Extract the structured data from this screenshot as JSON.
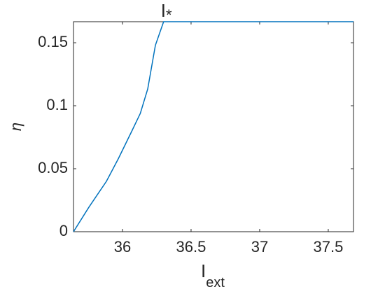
{
  "chart_data": {
    "type": "line",
    "x": [
      35.643,
      35.755,
      35.883,
      35.97,
      36.066,
      36.13,
      36.184,
      36.24,
      36.3,
      37.684
    ],
    "series": [
      {
        "color": "#0072bd",
        "values": [
          0,
          0.0194,
          0.04,
          0.058,
          0.0794,
          0.0939,
          0.1133,
          0.148,
          0.1667,
          0.1667
        ]
      }
    ],
    "xlim": [
      35.643,
      37.684
    ],
    "ylim": [
      0,
      0.1667
    ],
    "xticks": [
      36,
      36.5,
      37,
      37.5
    ],
    "yticks": [
      0,
      0.05,
      0.1,
      0.15
    ],
    "xlabel": {
      "text": "I",
      "subscript": "ext"
    },
    "ylabel": "η",
    "annotation": {
      "text": "I",
      "subscript": "*",
      "x": 36.3
    },
    "grid": false
  }
}
